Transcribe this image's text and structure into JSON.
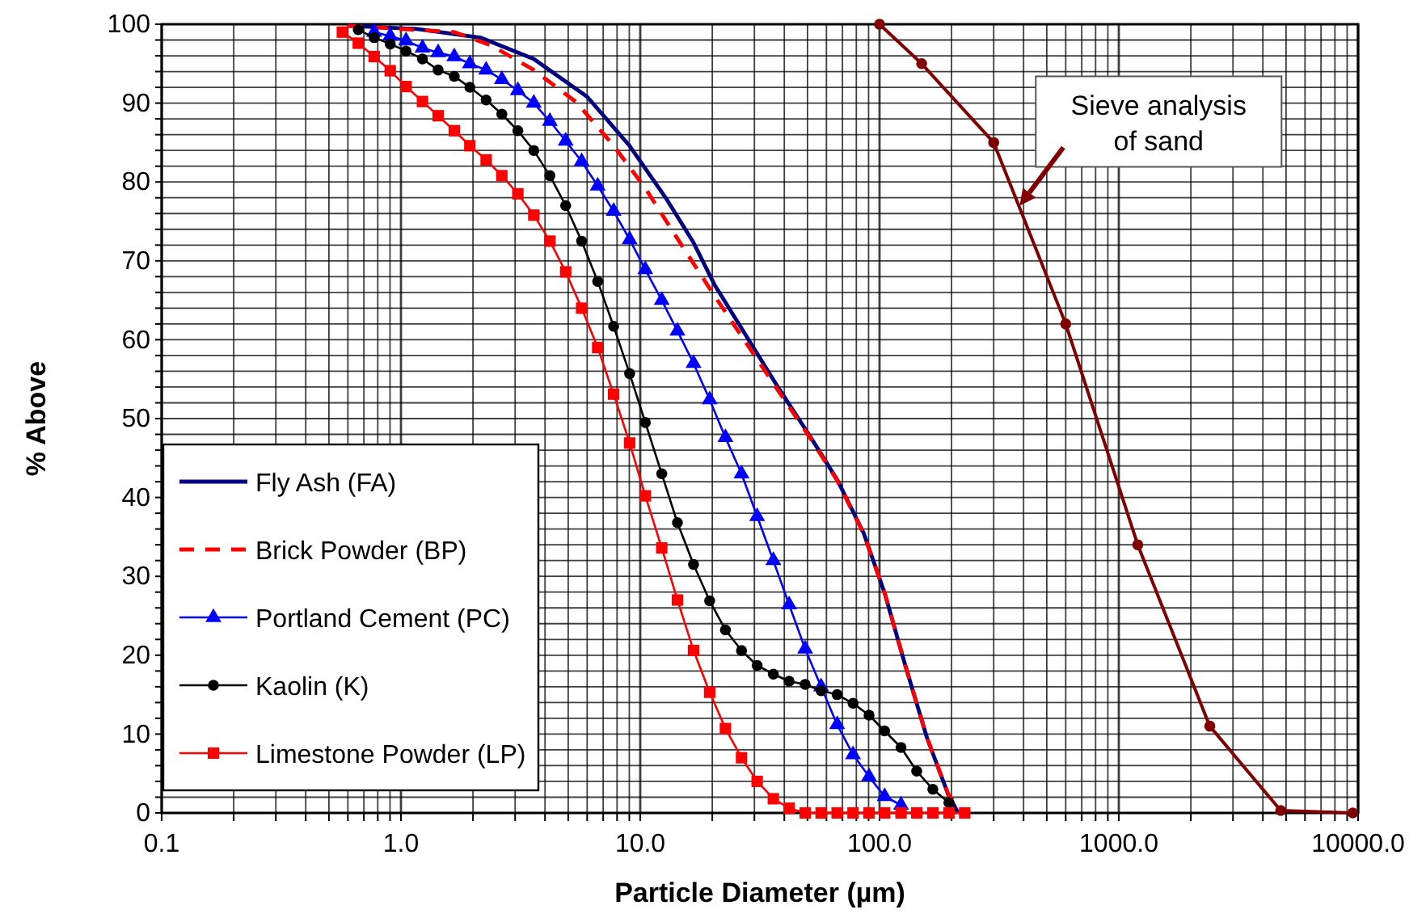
{
  "chart_data": {
    "type": "line",
    "xlabel": "Particle Diameter (µm)",
    "ylabel": "% Above",
    "log": "x",
    "grid": true,
    "legend": "bottom left",
    "xlim": [
      0.1,
      10000
    ],
    "ylim": [
      0,
      100
    ],
    "xticks": [
      {
        "value": 0.1,
        "label": "0.1"
      },
      {
        "value": 0.2,
        "label": null
      },
      {
        "value": 0.3,
        "label": null
      },
      {
        "value": 0.4,
        "label": null
      },
      {
        "value": 0.5,
        "label": null
      },
      {
        "value": 0.6,
        "label": null
      },
      {
        "value": 0.7,
        "label": null
      },
      {
        "value": 0.8,
        "label": null
      },
      {
        "value": 0.9,
        "label": null
      },
      {
        "value": 1,
        "label": "1.0"
      },
      {
        "value": 2,
        "label": null
      },
      {
        "value": 3,
        "label": null
      },
      {
        "value": 4,
        "label": null
      },
      {
        "value": 5,
        "label": null
      },
      {
        "value": 6,
        "label": null
      },
      {
        "value": 7,
        "label": null
      },
      {
        "value": 8,
        "label": null
      },
      {
        "value": 9,
        "label": null
      },
      {
        "value": 10,
        "label": "10.0"
      },
      {
        "value": 20,
        "label": null
      },
      {
        "value": 30,
        "label": null
      },
      {
        "value": 40,
        "label": null
      },
      {
        "value": 50,
        "label": null
      },
      {
        "value": 60,
        "label": null
      },
      {
        "value": 70,
        "label": null
      },
      {
        "value": 80,
        "label": null
      },
      {
        "value": 90,
        "label": null
      },
      {
        "value": 100,
        "label": "100.0"
      },
      {
        "value": 200,
        "label": null
      },
      {
        "value": 300,
        "label": null
      },
      {
        "value": 400,
        "label": null
      },
      {
        "value": 500,
        "label": null
      },
      {
        "value": 600,
        "label": null
      },
      {
        "value": 700,
        "label": null
      },
      {
        "value": 800,
        "label": null
      },
      {
        "value": 900,
        "label": null
      },
      {
        "value": 1000,
        "label": "1000.0"
      },
      {
        "value": 2000,
        "label": null
      },
      {
        "value": 3000,
        "label": null
      },
      {
        "value": 4000,
        "label": null
      },
      {
        "value": 5000,
        "label": null
      },
      {
        "value": 6000,
        "label": null
      },
      {
        "value": 7000,
        "label": null
      },
      {
        "value": 8000,
        "label": null
      },
      {
        "value": 9000,
        "label": null
      },
      {
        "value": 10000,
        "label": "10000.0"
      }
    ],
    "yticks": [
      0,
      {
        "value": 2,
        "label": null
      },
      {
        "value": 4,
        "label": null
      },
      {
        "value": 6,
        "label": null
      },
      {
        "value": 8,
        "label": null
      },
      10,
      {
        "value": 12,
        "label": null
      },
      {
        "value": 14,
        "label": null
      },
      {
        "value": 16,
        "label": null
      },
      {
        "value": 18,
        "label": null
      },
      20,
      {
        "value": 22,
        "label": null
      },
      {
        "value": 24,
        "label": null
      },
      {
        "value": 26,
        "label": null
      },
      {
        "value": 28,
        "label": null
      },
      30,
      {
        "value": 32,
        "label": null
      },
      {
        "value": 34,
        "label": null
      },
      {
        "value": 36,
        "label": null
      },
      {
        "value": 38,
        "label": null
      },
      40,
      {
        "value": 42,
        "label": null
      },
      {
        "value": 44,
        "label": null
      },
      {
        "value": 46,
        "label": null
      },
      {
        "value": 48,
        "label": null
      },
      50,
      {
        "value": 52,
        "label": null
      },
      {
        "value": 54,
        "label": null
      },
      {
        "value": 56,
        "label": null
      },
      {
        "value": 58,
        "label": null
      },
      60,
      {
        "value": 62,
        "label": null
      },
      {
        "value": 64,
        "label": null
      },
      {
        "value": 66,
        "label": null
      },
      {
        "value": 68,
        "label": null
      },
      70,
      {
        "value": 72,
        "label": null
      },
      {
        "value": 74,
        "label": null
      },
      {
        "value": 76,
        "label": null
      },
      {
        "value": 78,
        "label": null
      },
      80,
      {
        "value": 82,
        "label": null
      },
      {
        "value": 84,
        "label": null
      },
      {
        "value": 86,
        "label": null
      },
      {
        "value": 88,
        "label": null
      },
      90,
      {
        "value": 92,
        "label": null
      },
      {
        "value": 94,
        "label": null
      },
      {
        "value": 96,
        "label": null
      },
      {
        "value": 98,
        "label": null
      },
      100
    ],
    "x": [
      0.569,
      0.663,
      0.773,
      0.902,
      1.05,
      1.23,
      1.43,
      1.67,
      1.94,
      2.27,
      2.64,
      3.08,
      3.59,
      4.19,
      4.88,
      5.69,
      6.64,
      7.74,
      9.03,
      10.5,
      12.3,
      14.3,
      16.7,
      19.5,
      22.7,
      26.5,
      30.8,
      36,
      41.9,
      48.9,
      57,
      66.5,
      77.5,
      90.4,
      105,
      123,
      143,
      167,
      195,
      227
    ],
    "series": [
      {
        "name": "Fly Ash (FA)",
        "color": "#000080",
        "marker": "none",
        "line_style": "solid",
        "x": [
          0.6,
          1.17,
          2.15,
          3.59,
          6.0,
          9.02,
          12.9,
          16.7,
          20.5,
          37.8,
          51.4,
          66.4,
          85.8,
          105,
          129,
          158,
          194,
          213
        ],
        "values": [
          99.8,
          99.4,
          98.3,
          95.6,
          90.8,
          84.6,
          77.8,
          72.3,
          66.9,
          53.9,
          47.7,
          42.3,
          35.5,
          27.9,
          18.4,
          9.5,
          2.3,
          0
        ]
      },
      {
        "name": "Brick Powder (BP)",
        "color": "#ff0000",
        "marker": "none",
        "line_style": "dashed",
        "x": [
          0.6,
          1.67,
          2.39,
          3.59,
          5.41,
          7.74,
          10.5,
          15.1,
          20.5,
          37.8,
          51.4,
          66.4,
          85.8,
          105,
          129,
          158,
          194,
          226
        ],
        "values": [
          99.8,
          99.0,
          97.3,
          94.2,
          90.1,
          84.6,
          79.2,
          71.7,
          65.5,
          53.5,
          47.5,
          42.2,
          35.4,
          27.9,
          18.4,
          9.5,
          2.3,
          0
        ]
      },
      {
        "name": "Portland Cement (PC)",
        "color": "#0000ff",
        "marker": "triangle",
        "line_style": "solid",
        "values": [
          null,
          null,
          99.0,
          98.5,
          97.9,
          97.0,
          96.4,
          95.9,
          95.0,
          94.2,
          93.0,
          91.6,
          90.0,
          87.7,
          85.2,
          82.6,
          79.5,
          76.3,
          72.7,
          68.9,
          65.0,
          61.1,
          57.0,
          52.4,
          47.6,
          43.0,
          37.6,
          32.0,
          26.4,
          20.8,
          16.0,
          11.2,
          7.4,
          4.6,
          2.1,
          1.0,
          null,
          null,
          null,
          null
        ]
      },
      {
        "name": "Kaolin (K)",
        "color": "#000000",
        "marker": "circle",
        "line_style": "solid",
        "values": [
          null,
          99.3,
          98.3,
          97.5,
          96.6,
          95.6,
          94.2,
          93.4,
          92.0,
          90.4,
          88.6,
          86.5,
          84.0,
          80.8,
          77.0,
          72.5,
          67.4,
          61.7,
          55.7,
          49.5,
          43.0,
          36.8,
          31.5,
          26.9,
          23.2,
          20.6,
          18.7,
          17.6,
          16.7,
          16.3,
          15.5,
          15.0,
          13.9,
          12.4,
          10.4,
          8.3,
          5.3,
          3.0,
          1.3,
          null
        ]
      },
      {
        "name": "Limestone Powder (LP)",
        "color": "#ff0000",
        "marker": "square",
        "line_style": "solid",
        "values": [
          99.0,
          97.6,
          95.9,
          94.1,
          92.1,
          90.2,
          88.4,
          86.5,
          84.6,
          82.8,
          80.8,
          78.5,
          75.8,
          72.5,
          68.6,
          64.0,
          59.0,
          53.1,
          46.9,
          40.2,
          33.6,
          27.0,
          20.6,
          15.3,
          10.7,
          7.0,
          4.0,
          1.8,
          0.6,
          0,
          0,
          0,
          0,
          0,
          0,
          0,
          0,
          0,
          0,
          0
        ]
      },
      {
        "color": "#800000",
        "marker": "circle",
        "line_style": "solid",
        "x": [
          100,
          150,
          300,
          600,
          1200,
          2400,
          4750,
          9500
        ],
        "values": [
          100,
          95,
          85,
          62,
          34,
          11,
          0.3,
          0
        ]
      }
    ],
    "annotations": [
      {
        "text": "Sieve analysis of sand",
        "x": 385,
        "y": 77
      }
    ]
  }
}
